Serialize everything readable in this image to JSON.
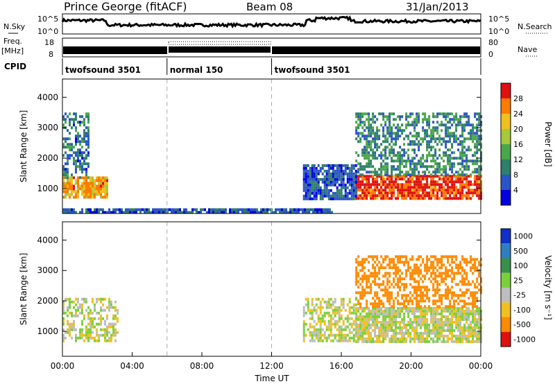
{
  "header": {
    "title": "Prince George (fitACF)",
    "beam": "Beam 08",
    "date": "31/Jan/2013"
  },
  "params_panel": {
    "nsky_label": "N.Sky",
    "nsearch_label": "N.Search",
    "freq_label_1": "Freq.",
    "freq_label_2": "[MHz]",
    "nave_label": "Nave",
    "cpid_label": "CPID",
    "noise_ticks_left": [
      "10^5",
      "10^0"
    ],
    "noise_ticks_right": [
      "10^5",
      "10^0"
    ],
    "freq_ticks": [
      "18",
      "8"
    ],
    "nave_ticks": [
      "80",
      "0"
    ],
    "cpid_segments": [
      {
        "start": 0,
        "end": 6,
        "label": "twofsound 3501"
      },
      {
        "start": 6,
        "end": 12,
        "label": "normal 150"
      },
      {
        "start": 12,
        "end": 24,
        "label": "twofsound 3501"
      }
    ]
  },
  "chart_data": [
    {
      "type": "heatmap",
      "title": "",
      "xlabel": "Time UT",
      "ylabel": "Slant Range [km]",
      "xlim": [
        0,
        24
      ],
      "ylim": [
        180,
        4600
      ],
      "x_ticks": [
        "00:00",
        "04:00",
        "08:00",
        "12:00",
        "16:00",
        "20:00",
        "00:00"
      ],
      "y_ticks": [
        "1000",
        "2000",
        "3000",
        "4000"
      ],
      "colorbar": {
        "label": "Power [dB]",
        "ticks": [
          "4",
          "8",
          "12",
          "16",
          "20",
          "24",
          "28"
        ],
        "range": [
          0,
          30
        ],
        "colors": [
          "#0000e0",
          "#2a55c8",
          "#2f7f6a",
          "#4aa64a",
          "#a8c83a",
          "#f0c020",
          "#ff7a00",
          "#e01010"
        ]
      },
      "regions": [
        {
          "x": [
            0,
            2.6
          ],
          "y": [
            700,
            1400
          ],
          "value": 22
        },
        {
          "x": [
            0,
            1.5
          ],
          "y": [
            1400,
            3500
          ],
          "value": 8
        },
        {
          "x": [
            16.8,
            24
          ],
          "y": [
            650,
            1450
          ],
          "value": 27
        },
        {
          "x": [
            16.8,
            24
          ],
          "y": [
            1450,
            3500
          ],
          "value": 10
        },
        {
          "x": [
            13.8,
            16.8
          ],
          "y": [
            700,
            1800
          ],
          "value": 6
        },
        {
          "x": [
            0,
            15.5
          ],
          "y": [
            200,
            350
          ],
          "value": 6
        }
      ]
    },
    {
      "type": "heatmap",
      "title": "",
      "xlabel": "Time UT",
      "ylabel": "Slant Range [km]",
      "xlim": [
        0,
        24
      ],
      "ylim": [
        180,
        4600
      ],
      "x_ticks": [
        "00:00",
        "04:00",
        "08:00",
        "12:00",
        "16:00",
        "20:00",
        "00:00"
      ],
      "y_ticks": [
        "1000",
        "2000",
        "3000",
        "4000"
      ],
      "colorbar": {
        "label": "Velocity [m s⁻¹]",
        "ticks": [
          "1000",
          "500",
          "100",
          "25",
          "-25",
          "-100",
          "-500",
          "-1000"
        ],
        "colors": [
          "#1030c8",
          "#2e7fbf",
          "#3a8f4a",
          "#7ccf3a",
          "#bdbdbd",
          "#f0c020",
          "#ff8a00",
          "#e01010"
        ]
      },
      "regions": [
        {
          "x": [
            0,
            3.2
          ],
          "y": [
            700,
            2100
          ],
          "value": 0
        },
        {
          "x": [
            16.8,
            24
          ],
          "y": [
            700,
            1800
          ],
          "value": 0
        },
        {
          "x": [
            16.8,
            24
          ],
          "y": [
            1800,
            3500
          ],
          "value": -200
        },
        {
          "x": [
            13.8,
            16.8
          ],
          "y": [
            700,
            2100
          ],
          "value": 0
        }
      ]
    }
  ]
}
